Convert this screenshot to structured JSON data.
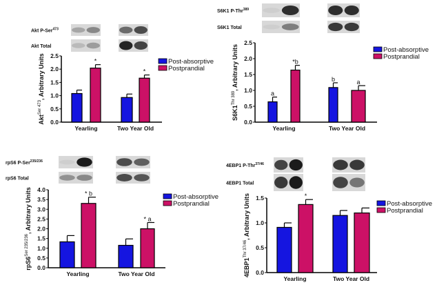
{
  "colors": {
    "post_absorptive": "#1515e0",
    "postprandial": "#cc1166"
  },
  "chart_data": [
    {
      "type": "bar",
      "categories": [
        "Yearling",
        "Two Year Old"
      ],
      "ylabel": {
        "main": "Akt",
        "sup": "Ser 473",
        "rest": ", Arbitrary Units"
      },
      "ylim": [
        0,
        2.5
      ],
      "yticks": [
        "0.0",
        "0.5",
        "1.0",
        "1.5",
        "2.0",
        "2.5"
      ],
      "ytick_values": [
        0,
        0.5,
        1,
        1.5,
        2,
        2.5
      ],
      "legend_placement": "top-right",
      "blot_labels": [
        {
          "main": "Akt P-Ser",
          "sup": "473"
        },
        {
          "main": "Akt Total",
          "sup": ""
        }
      ],
      "series": [
        {
          "name": "Post-absorptive",
          "values": [
            1.08,
            0.93
          ],
          "errors": [
            0.13,
            0.13
          ],
          "annotations": [
            "",
            ""
          ]
        },
        {
          "name": "Postprandial",
          "values": [
            2.04,
            1.66
          ],
          "errors": [
            0.13,
            0.12
          ],
          "annotations": [
            "*",
            "*"
          ]
        }
      ]
    },
    {
      "type": "bar",
      "categories": [
        "Yearling",
        "Two Year Old"
      ],
      "ylabel": {
        "main": "S6K1",
        "sup": "Thr 389",
        "rest": ", Arbitrary Units"
      },
      "ylim": [
        0,
        2.5
      ],
      "yticks": [
        "0.0",
        "0.5",
        "1.0",
        "1.5",
        "2.0",
        "2.5"
      ],
      "ytick_values": [
        0,
        0.5,
        1,
        1.5,
        2,
        2.5
      ],
      "legend_placement": "top-right",
      "blot_labels": [
        {
          "main": "S6K1 P-Thr",
          "sup": "389"
        },
        {
          "main": "S6K1 Total",
          "sup": ""
        }
      ],
      "series": [
        {
          "name": "Post-absorptive",
          "values": [
            0.64,
            1.09
          ],
          "errors": [
            0.15,
            0.15
          ],
          "annotations": [
            "a",
            "b"
          ]
        },
        {
          "name": "Postprandial",
          "values": [
            1.64,
            1.0
          ],
          "errors": [
            0.15,
            0.15
          ],
          "annotations": [
            "*b",
            "a"
          ]
        }
      ]
    },
    {
      "type": "bar",
      "categories": [
        "Yearling",
        "Two Year Old"
      ],
      "ylabel": {
        "main": "rpS6",
        "sup": "Ser 235/236",
        "rest": ", Arbitrary Units"
      },
      "ylim": [
        0,
        4.0
      ],
      "yticks": [
        "0.0",
        "0.5",
        "1.0",
        "1.5",
        "2.0",
        "2.5",
        "3.0",
        "3.5",
        "4.0"
      ],
      "ytick_values": [
        0,
        0.5,
        1,
        1.5,
        2,
        2.5,
        3,
        3.5,
        4
      ],
      "legend_placement": "top-right",
      "blot_labels": [
        {
          "main": "rpS6 P-Ser",
          "sup": "235/236"
        },
        {
          "main": "rpS6 Total",
          "sup": ""
        }
      ],
      "series": [
        {
          "name": "Post-absorptive",
          "values": [
            1.33,
            1.15
          ],
          "errors": [
            0.32,
            0.33
          ],
          "annotations": [
            "",
            ""
          ]
        },
        {
          "name": "Postprandial",
          "values": [
            3.3,
            2.0
          ],
          "errors": [
            0.32,
            0.32
          ],
          "annotations": [
            "* b",
            "* a"
          ]
        }
      ]
    },
    {
      "type": "bar",
      "categories": [
        "Yearling",
        "Two Year Old"
      ],
      "ylabel": {
        "main": "4EBP1",
        "sup": "Thr 37/46",
        "rest": ", Arbitrary Units"
      },
      "ylim": [
        0,
        1.5
      ],
      "yticks": [
        "0.0",
        "0.5",
        "1.0",
        "1.5"
      ],
      "ytick_values": [
        0,
        0.5,
        1,
        1.5
      ],
      "legend_placement": "top-right",
      "blot_labels": [
        {
          "main": "4EBP1 P-Thr",
          "sup": "37/46"
        },
        {
          "main": "4EBP1 Total",
          "sup": ""
        }
      ],
      "series": [
        {
          "name": "Post-absorptive",
          "values": [
            0.91,
            1.15
          ],
          "errors": [
            0.09,
            0.1
          ],
          "annotations": [
            "",
            ""
          ]
        },
        {
          "name": "Postprandial",
          "values": [
            1.37,
            1.2
          ],
          "errors": [
            0.1,
            0.1
          ],
          "annotations": [
            "*",
            ""
          ]
        }
      ]
    }
  ]
}
